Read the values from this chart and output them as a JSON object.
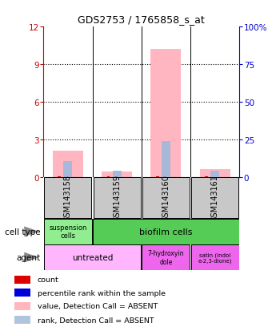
{
  "title": "GDS2753 / 1765858_s_at",
  "samples": [
    "GSM143158",
    "GSM143159",
    "GSM143160",
    "GSM143161"
  ],
  "pink_bars": [
    2.1,
    0.45,
    10.2,
    0.65
  ],
  "blue_bars": [
    1.25,
    0.5,
    2.85,
    0.5
  ],
  "red_bars": [
    0.08,
    0.08,
    0.08,
    0.08
  ],
  "ylim_left": [
    0,
    12
  ],
  "ylim_right": [
    0,
    100
  ],
  "yticks_left": [
    0,
    3,
    6,
    9,
    12
  ],
  "yticks_right": [
    0,
    25,
    50,
    75,
    100
  ],
  "ytick_labels_right": [
    "0",
    "25",
    "50",
    "75",
    "100%"
  ],
  "plot_bg": "#FFFFFF",
  "sample_bg": "#C8C8C8",
  "left_axis_color": "#CC0000",
  "right_axis_color": "#0000CC",
  "cell_type_colors": [
    "#90EE90",
    "#55CC55"
  ],
  "agent_colors_light": "#FFB6FF",
  "agent_colors_dark": "#EE66EE",
  "legend_colors": [
    "#DD0000",
    "#0000DD",
    "#FFB6C1",
    "#B0C4DE"
  ],
  "legend_labels": [
    "count",
    "percentile rank within the sample",
    "value, Detection Call = ABSENT",
    "rank, Detection Call = ABSENT"
  ]
}
